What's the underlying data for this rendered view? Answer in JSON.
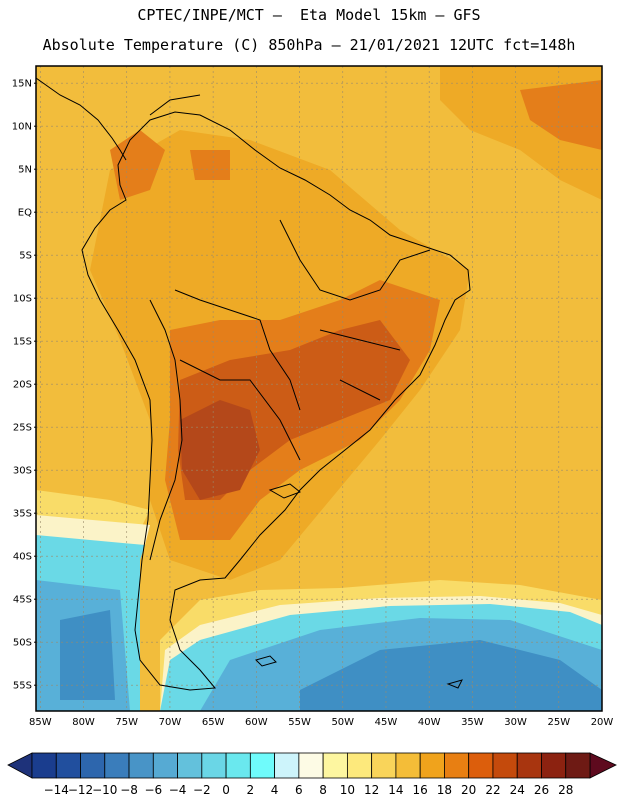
{
  "header": {
    "line1": "CPTEC/INPE/MCT –  Eta Model 15km – GFS",
    "line2": "Absolute Temperature (C) 850hPa – 21/01/2021 12UTC fct=148h"
  },
  "axes": {
    "lat_labels": [
      "15N",
      "10N",
      "5N",
      "EQ",
      "5S",
      "10S",
      "15S",
      "20S",
      "25S",
      "30S",
      "35S",
      "40S",
      "45S",
      "50S",
      "55S"
    ],
    "lon_labels": [
      "85W",
      "80W",
      "75W",
      "70W",
      "65W",
      "60W",
      "55W",
      "50W",
      "45W",
      "40W",
      "35W",
      "30W",
      "25W",
      "20W"
    ],
    "lat_range": [
      17,
      -58
    ],
    "lon_range": [
      -85.5,
      -20
    ]
  },
  "colorbar": {
    "labels": [
      "-14",
      "-12",
      "-10",
      "-8",
      "-6",
      "-4",
      "-2",
      "0",
      "2",
      "4",
      "6",
      "8",
      "10",
      "12",
      "14",
      "16",
      "18",
      "20",
      "22",
      "24",
      "26",
      "28"
    ],
    "colors": [
      "#1a3d8e",
      "#214f9e",
      "#2d66ad",
      "#3a7dbb",
      "#4894c7",
      "#56aad3",
      "#63c1dc",
      "#6ad6e6",
      "#6ae8ee",
      "#6ffbfb",
      "#cdf4fb",
      "#fdfbe5",
      "#fdf6a0",
      "#fde97c",
      "#f9d45a",
      "#f4bd38",
      "#f0a31c",
      "#e87f12",
      "#dc5e0c",
      "#c44a0c",
      "#a8350f",
      "#8c2210",
      "#6e1a14"
    ],
    "end_left_color": "#1e327a",
    "end_right_color": "#5e0a1e"
  },
  "map_colors": {
    "ocean_warm": "#f2bd3c",
    "land_warm": "#eeaa26",
    "hot": "#e47e1a",
    "hotter": "#cc5c16",
    "hottest": "#b4481a",
    "cool_yellow": "#f9dc68",
    "pale": "#fbf3c8",
    "cyan": "#6ad9e6",
    "blue": "#58b0d8",
    "deep_blue": "#3f8fc4",
    "outline": "#000000"
  },
  "icons": {
    "left_arrow": "triangle-left-icon",
    "right_arrow": "triangle-right-icon"
  }
}
